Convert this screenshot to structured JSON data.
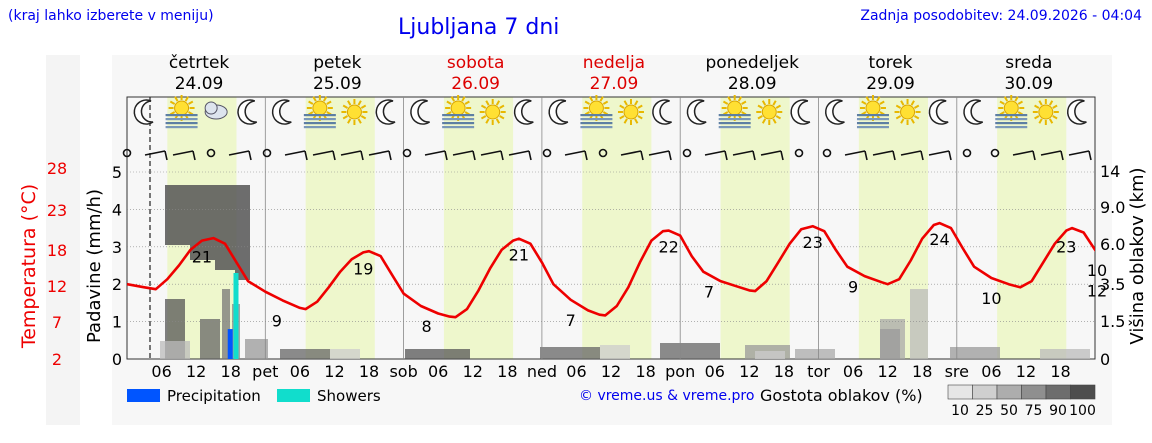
{
  "header": {
    "hint": "(kraj lahko izberete v meniju)",
    "title": "Ljubljana 7 dni",
    "updated": "Zadnja posodobitev: 24.09.2026 - 04:04"
  },
  "footer": {
    "credit": "© vreme.us & vreme.pro"
  },
  "colors": {
    "temperature": "#ee0000",
    "precipitation": "#0055ff",
    "showers": "#11ddcc",
    "day_band": "#eef7cc",
    "night_band": "#f7f7f7",
    "weekend": "#dd0000"
  },
  "chart_data": {
    "type": "line",
    "days": [
      {
        "name": "četrtek",
        "date": "24.09",
        "weekend": false,
        "abbr": "pet"
      },
      {
        "name": "petek",
        "date": "25.09",
        "weekend": false,
        "abbr": "sob"
      },
      {
        "name": "sobota",
        "date": "26.09",
        "weekend": true,
        "abbr": "ned"
      },
      {
        "name": "nedelja",
        "date": "27.09",
        "weekend": true,
        "abbr": "pon"
      },
      {
        "name": "ponedeljek",
        "date": "28.09",
        "weekend": false,
        "abbr": "tor"
      },
      {
        "name": "torek",
        "date": "29.09",
        "weekend": false,
        "abbr": "sre"
      },
      {
        "name": "sreda",
        "date": "30.09",
        "weekend": false,
        "abbr": ""
      }
    ],
    "x_start_hour": 0,
    "x_end_hour": 168,
    "hour_ticks": [
      "06",
      "12",
      "18"
    ],
    "temp_axis": {
      "label": "Temperatura (°C)",
      "ticks": [
        2,
        7,
        12,
        18,
        23,
        28
      ],
      "range": [
        2,
        32
      ]
    },
    "precip_axis": {
      "label": "Padavine (mm/h)",
      "ticks": [
        0,
        1,
        2,
        3,
        4,
        5
      ],
      "range": [
        0,
        5
      ]
    },
    "cloud_axis": {
      "label": "Višina oblakov (km)",
      "ticks": [
        "0",
        "1.5",
        "3.5",
        "6.0",
        "9.0",
        "14"
      ]
    },
    "series": [
      {
        "name": "Temperatura",
        "points": [
          [
            0,
            14
          ],
          [
            3,
            13.5
          ],
          [
            5,
            13.2
          ],
          [
            7,
            14.8
          ],
          [
            9,
            17
          ],
          [
            11,
            19.5
          ],
          [
            13,
            21
          ],
          [
            15,
            21.4
          ],
          [
            17,
            20.5
          ],
          [
            19,
            17.5
          ],
          [
            21,
            14.5
          ],
          [
            24,
            12.8
          ],
          [
            27,
            11.4
          ],
          [
            30,
            10.2
          ],
          [
            31,
            10
          ],
          [
            33,
            11.2
          ],
          [
            35,
            13.5
          ],
          [
            37,
            16
          ],
          [
            39,
            18
          ],
          [
            41,
            19.1
          ],
          [
            42,
            19.3
          ],
          [
            44,
            18.5
          ],
          [
            46,
            15.5
          ],
          [
            48,
            12.5
          ],
          [
            51,
            10.5
          ],
          [
            54,
            9.3
          ],
          [
            56,
            8.8
          ],
          [
            57,
            8.7
          ],
          [
            59,
            10
          ],
          [
            61,
            13
          ],
          [
            63,
            16.5
          ],
          [
            65,
            19.5
          ],
          [
            67,
            21
          ],
          [
            68,
            21.3
          ],
          [
            70,
            20.5
          ],
          [
            72,
            17.5
          ],
          [
            74,
            14
          ],
          [
            77,
            11.5
          ],
          [
            80,
            9.8
          ],
          [
            82,
            9.1
          ],
          [
            83,
            9
          ],
          [
            85,
            10.5
          ],
          [
            87,
            13.5
          ],
          [
            89,
            17.5
          ],
          [
            91,
            21
          ],
          [
            93,
            22.5
          ],
          [
            94,
            22.6
          ],
          [
            96,
            21.8
          ],
          [
            98,
            18.5
          ],
          [
            100,
            16
          ],
          [
            103,
            14.5
          ],
          [
            106,
            13.6
          ],
          [
            108,
            13
          ],
          [
            109,
            12.9
          ],
          [
            111,
            14.5
          ],
          [
            113,
            17.5
          ],
          [
            115,
            20.5
          ],
          [
            117,
            22.8
          ],
          [
            119,
            23.3
          ],
          [
            121,
            22.5
          ],
          [
            123,
            19.5
          ],
          [
            125,
            16.8
          ],
          [
            128,
            15.3
          ],
          [
            131,
            14.3
          ],
          [
            132,
            14
          ],
          [
            134,
            14.8
          ],
          [
            136,
            17.8
          ],
          [
            138,
            21.3
          ],
          [
            140,
            23.5
          ],
          [
            141,
            23.8
          ],
          [
            143,
            23
          ],
          [
            145,
            19.8
          ],
          [
            147,
            16.8
          ],
          [
            150,
            15
          ],
          [
            153,
            14
          ],
          [
            155,
            13.5
          ],
          [
            157,
            14.5
          ],
          [
            159,
            17.5
          ],
          [
            161,
            20.5
          ],
          [
            163,
            22.6
          ],
          [
            164,
            23
          ],
          [
            166,
            22.3
          ],
          [
            168,
            19.5
          ],
          [
            170,
            17.3
          ],
          [
            172,
            16.2
          ]
        ],
        "labels": [
          {
            "x": 13,
            "text": "21"
          },
          {
            "x": 26,
            "text": "9"
          },
          {
            "x": 41,
            "text": "19"
          },
          {
            "x": 52,
            "text": "8"
          },
          {
            "x": 68,
            "text": "21"
          },
          {
            "x": 77,
            "text": "7"
          },
          {
            "x": 94,
            "text": "22"
          },
          {
            "x": 101,
            "text": "7"
          },
          {
            "x": 119,
            "text": "23"
          },
          {
            "x": 126,
            "text": "9"
          },
          {
            "x": 141,
            "text": "24"
          },
          {
            "x": 150,
            "text": "10"
          },
          {
            "x": 163,
            "text": "23"
          },
          {
            "x": 169,
            "text": "10"
          },
          {
            "x": 172,
            "text": "12"
          }
        ]
      },
      {
        "name": "Precipitation",
        "bars": [
          {
            "x": 18,
            "value": 0.8
          }
        ]
      },
      {
        "name": "Showers",
        "bars": [
          {
            "x": 19,
            "value": 2.3
          }
        ]
      }
    ],
    "legend": [
      "Precipitation",
      "Showers"
    ],
    "cloud_legend": {
      "label": "Gostota oblakov (%)",
      "steps": [
        10,
        25,
        50,
        75,
        90,
        100
      ]
    }
  }
}
